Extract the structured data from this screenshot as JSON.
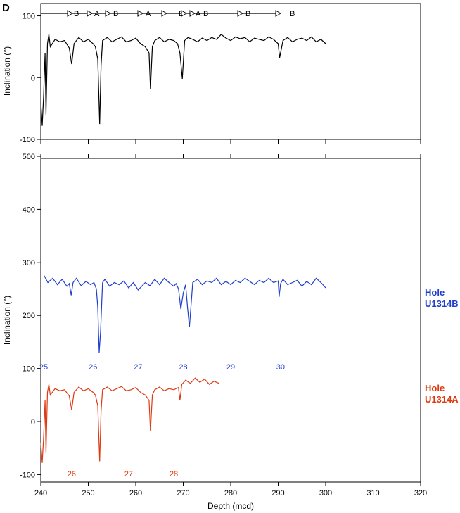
{
  "panel_label": "D",
  "colors": {
    "splice": "#000000",
    "holeB": "#1f3fcc",
    "holeA": "#dd3a12"
  },
  "chart_data": [
    {
      "type": "line",
      "name": "top-panel",
      "ylabel": "Inclination (°)",
      "xlim": [
        240,
        320
      ],
      "ylim": [
        -100,
        120
      ],
      "yticks": [
        -100,
        0,
        100
      ],
      "splice_letters": [
        "B",
        "A",
        "B",
        "A",
        "B",
        "A",
        "B",
        "B",
        "B"
      ],
      "series": [
        {
          "color": "#000000",
          "x": [
            240.0,
            240.3,
            240.6,
            240.9,
            241.1,
            241.4,
            241.7,
            242.0,
            243.0,
            244.0,
            245.0,
            246.0,
            246.5,
            247.0,
            248.0,
            249.0,
            250.0,
            251.0,
            251.5,
            252.0,
            252.2,
            252.4,
            252.7,
            253.0,
            254.0,
            255.0,
            256.0,
            257.0,
            258.0,
            259.0,
            260.0,
            261.0,
            262.0,
            262.8,
            263.1,
            263.5,
            264.0,
            265.0,
            266.0,
            267.0,
            268.0,
            268.8,
            269.3,
            269.8,
            270.3,
            271.0,
            272.0,
            273.0,
            274.0,
            275.0,
            276.0,
            277.0,
            278.0,
            279.0,
            280.0,
            281.0,
            282.0,
            283.0,
            284.0,
            285.0,
            286.0,
            287.0,
            288.0,
            289.0,
            290.0,
            290.3,
            291.0,
            292.0,
            293.0,
            294.0,
            295.0,
            296.0,
            297.0,
            298.0,
            299.0,
            300.0
          ],
          "y": [
            -40,
            -78,
            -30,
            40,
            -60,
            55,
            70,
            50,
            62,
            58,
            60,
            48,
            22,
            55,
            65,
            58,
            62,
            55,
            50,
            30,
            -20,
            -75,
            20,
            60,
            65,
            58,
            62,
            66,
            58,
            60,
            64,
            55,
            50,
            40,
            -18,
            50,
            60,
            65,
            58,
            62,
            60,
            55,
            40,
            -2,
            60,
            65,
            62,
            58,
            64,
            60,
            65,
            62,
            70,
            64,
            60,
            66,
            63,
            65,
            58,
            64,
            62,
            60,
            66,
            62,
            55,
            32,
            60,
            65,
            58,
            62,
            64,
            60,
            66,
            58,
            62,
            55
          ]
        }
      ]
    },
    {
      "type": "line",
      "name": "bottom-panel",
      "xlabel": "Depth (mcd)",
      "ylabel": "Inclination (°)",
      "xlim": [
        240,
        320
      ],
      "xticks": [
        240,
        250,
        260,
        270,
        280,
        290,
        300,
        310,
        320
      ],
      "yticks": [
        -100,
        0,
        100,
        200,
        300,
        400,
        500
      ],
      "ylim": [
        -110,
        500
      ],
      "series": [
        {
          "name": "Hole U1314B",
          "color": "#1f3fcc",
          "x": [
            240.7,
            241.5,
            242.5,
            243.5,
            244.5,
            245.5,
            246.0,
            246.4,
            246.8,
            247.5,
            248.5,
            249.5,
            250.5,
            251.2,
            251.7,
            252.0,
            252.3,
            252.6,
            253.0,
            253.5,
            254.5,
            255.5,
            256.5,
            257.5,
            258.5,
            259.5,
            260.5,
            262.0,
            263.0,
            264.0,
            265.0,
            266.0,
            267.0,
            268.0,
            268.5,
            269.0,
            269.5,
            270.0,
            270.5,
            270.9,
            271.3,
            272.0,
            273.0,
            274.0,
            275.0,
            276.0,
            277.0,
            278.0,
            279.0,
            280.0,
            281.0,
            282.0,
            283.0,
            284.0,
            285.0,
            286.0,
            287.0,
            288.0,
            289.0,
            290.0,
            290.2,
            290.5,
            291.0,
            292.0,
            293.0,
            294.0,
            295.0,
            296.0,
            297.0,
            298.0,
            299.0,
            300.0
          ],
          "y": [
            275,
            262,
            270,
            258,
            268,
            255,
            260,
            238,
            262,
            270,
            256,
            264,
            258,
            262,
            250,
            215,
            130,
            170,
            262,
            268,
            255,
            262,
            258,
            265,
            252,
            262,
            248,
            262,
            256,
            268,
            258,
            270,
            262,
            255,
            260,
            250,
            212,
            242,
            258,
            215,
            178,
            262,
            268,
            258,
            265,
            262,
            270,
            258,
            264,
            258,
            266,
            262,
            270,
            264,
            258,
            266,
            262,
            270,
            262,
            265,
            235,
            260,
            268,
            258,
            262,
            266,
            255,
            264,
            258,
            270,
            262,
            252
          ]
        },
        {
          "name": "Hole U1314A",
          "color": "#dd3a12",
          "x": [
            240.0,
            240.3,
            240.6,
            240.9,
            241.1,
            241.4,
            241.7,
            242.0,
            243.0,
            244.0,
            245.0,
            246.0,
            246.5,
            247.0,
            248.0,
            249.0,
            250.0,
            251.0,
            251.5,
            252.0,
            252.2,
            252.4,
            252.7,
            253.0,
            254.0,
            255.0,
            256.0,
            257.0,
            258.0,
            259.0,
            260.0,
            261.0,
            262.0,
            262.8,
            263.1,
            263.5,
            264.0,
            265.0,
            266.0,
            267.0,
            268.0,
            269.0,
            269.3,
            269.7,
            270.5,
            271.5,
            272.5,
            273.5,
            274.5,
            275.5,
            276.5,
            277.5
          ],
          "y": [
            -40,
            -78,
            -30,
            40,
            -60,
            55,
            70,
            50,
            62,
            58,
            60,
            48,
            22,
            55,
            65,
            58,
            62,
            55,
            50,
            30,
            -20,
            -75,
            20,
            60,
            65,
            58,
            62,
            66,
            58,
            60,
            64,
            55,
            50,
            40,
            -18,
            50,
            60,
            65,
            58,
            62,
            60,
            64,
            40,
            70,
            78,
            72,
            82,
            74,
            80,
            70,
            76,
            72
          ]
        }
      ]
    }
  ],
  "hole_labels": {
    "b": [
      "Hole",
      "U1314B"
    ],
    "a": [
      "Hole",
      "U1314A"
    ]
  },
  "core_labels": {
    "b": [
      {
        "text": "25",
        "depth": 240.6
      },
      {
        "text": "26",
        "depth": 251.0
      },
      {
        "text": "27",
        "depth": 260.5
      },
      {
        "text": "28",
        "depth": 270.0
      },
      {
        "text": "29",
        "depth": 280.0
      },
      {
        "text": "30",
        "depth": 290.5
      }
    ],
    "a": [
      {
        "text": "26",
        "depth": 246.5
      },
      {
        "text": "27",
        "depth": 258.5
      },
      {
        "text": "28",
        "depth": 268.0
      }
    ]
  }
}
